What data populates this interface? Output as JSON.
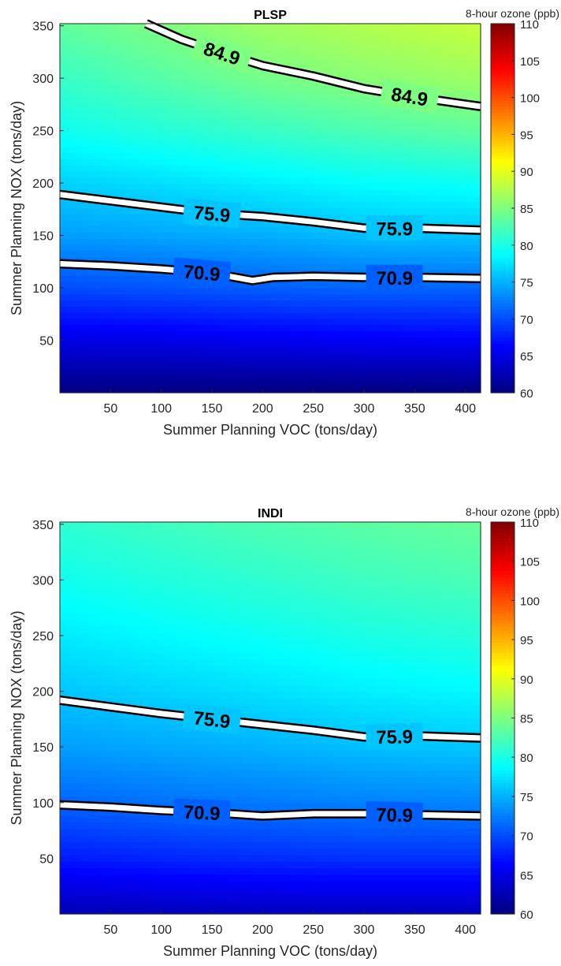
{
  "chart_data": [
    {
      "type": "contour",
      "title": "PLSP",
      "xlabel": "Summer Planning VOC (tons/day)",
      "ylabel": "Summer Planning NOX (tons/day)",
      "colorbar_label": "8-hour ozone (ppb)",
      "xlim": [
        0,
        415
      ],
      "ylim": [
        0,
        352
      ],
      "clim": [
        60,
        110
      ],
      "xticks": [
        50,
        100,
        150,
        200,
        250,
        300,
        350,
        400
      ],
      "yticks": [
        50,
        100,
        150,
        200,
        250,
        300,
        350
      ],
      "cticks": [
        60,
        65,
        70,
        75,
        80,
        85,
        90,
        95,
        100,
        105,
        110
      ],
      "colormap": "jet",
      "field_grid": {
        "x": [
          0,
          100,
          200,
          300,
          415
        ],
        "y": [
          0,
          50,
          100,
          150,
          200,
          250,
          300,
          352
        ],
        "z": [
          [
            60.0,
            60.0,
            60.0,
            60.0,
            60.0
          ],
          [
            65.0,
            65.2,
            65.5,
            65.8,
            66.0
          ],
          [
            70.0,
            70.4,
            70.9,
            71.2,
            71.2
          ],
          [
            74.0,
            74.4,
            74.8,
            75.6,
            75.8
          ],
          [
            76.5,
            77.2,
            78.0,
            78.8,
            79.3
          ],
          [
            79.5,
            80.5,
            81.5,
            82.5,
            83.5
          ],
          [
            81.5,
            83.0,
            84.5,
            85.5,
            86.5
          ],
          [
            83.5,
            85.0,
            86.5,
            87.5,
            88.5
          ]
        ]
      },
      "contours": [
        {
          "level": 84.9,
          "label": "84.9",
          "x": [
            85,
            120,
            160,
            200,
            250,
            300,
            350,
            415
          ],
          "y": [
            352,
            337,
            324,
            312,
            302,
            290,
            282,
            273
          ],
          "label_x": [
            160,
            345
          ]
        },
        {
          "level": 75.9,
          "label": "75.9",
          "x": [
            0,
            50,
            100,
            150,
            200,
            250,
            300,
            350,
            415
          ],
          "y": [
            189,
            183,
            177,
            171,
            168,
            163,
            157,
            157,
            155
          ],
          "label_x": [
            150,
            330
          ]
        },
        {
          "level": 70.9,
          "label": "70.9",
          "x": [
            0,
            50,
            100,
            150,
            190,
            210,
            250,
            300,
            350,
            415
          ],
          "y": [
            123,
            121,
            118,
            114,
            107,
            110,
            111,
            110,
            110,
            109
          ],
          "label_x": [
            140,
            330
          ]
        }
      ]
    },
    {
      "type": "contour",
      "title": "INDI",
      "xlabel": "Summer Planning VOC (tons/day)",
      "ylabel": "Summer Planning NOX (tons/day)",
      "colorbar_label": "8-hour ozone (ppb)",
      "xlim": [
        0,
        415
      ],
      "ylim": [
        0,
        352
      ],
      "clim": [
        60,
        110
      ],
      "xticks": [
        50,
        100,
        150,
        200,
        250,
        300,
        350,
        400
      ],
      "yticks": [
        50,
        100,
        150,
        200,
        250,
        300,
        350
      ],
      "cticks": [
        60,
        65,
        70,
        75,
        80,
        85,
        90,
        95,
        100,
        105,
        110
      ],
      "colormap": "jet",
      "field_grid": {
        "x": [
          0,
          100,
          200,
          300,
          415
        ],
        "y": [
          0,
          50,
          100,
          150,
          200,
          250,
          300,
          352
        ],
        "z": [
          [
            62.5,
            62.8,
            63.0,
            63.0,
            63.0
          ],
          [
            67.5,
            68.0,
            68.4,
            68.6,
            68.6
          ],
          [
            71.2,
            71.8,
            72.2,
            72.6,
            72.8
          ],
          [
            74.0,
            74.5,
            75.0,
            75.6,
            76.0
          ],
          [
            76.0,
            76.7,
            77.3,
            78.0,
            78.5
          ],
          [
            77.8,
            78.6,
            79.3,
            80.0,
            80.6
          ],
          [
            79.5,
            80.3,
            81.0,
            81.8,
            82.4
          ],
          [
            81.0,
            81.8,
            82.6,
            83.2,
            83.8
          ]
        ]
      },
      "contours": [
        {
          "level": 75.9,
          "label": "75.9",
          "x": [
            0,
            50,
            100,
            150,
            200,
            250,
            300,
            350,
            415
          ],
          "y": [
            192,
            186,
            180,
            175,
            170,
            165,
            159,
            160,
            158
          ],
          "label_x": [
            150,
            330
          ]
        },
        {
          "level": 70.9,
          "label": "70.9",
          "x": [
            0,
            50,
            100,
            150,
            200,
            250,
            300,
            350,
            415
          ],
          "y": [
            98,
            96,
            93,
            91,
            88,
            90,
            90,
            89,
            88
          ],
          "label_x": [
            140,
            330
          ]
        }
      ]
    }
  ]
}
